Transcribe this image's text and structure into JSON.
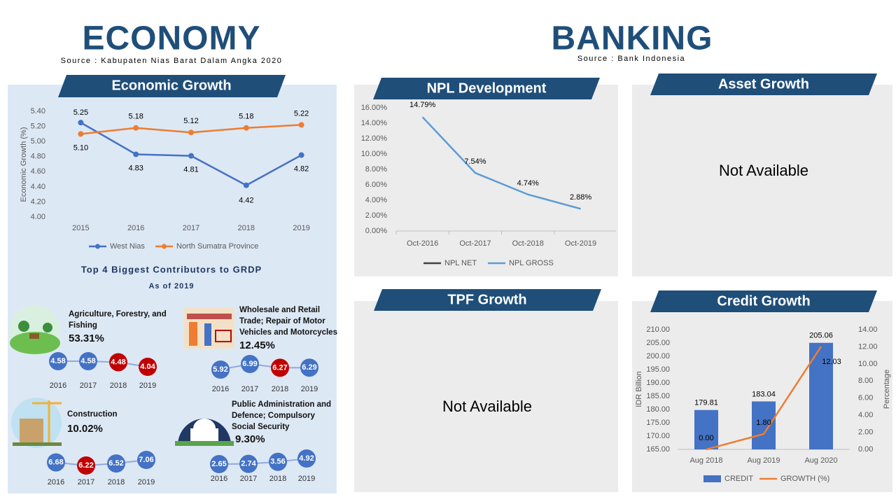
{
  "economy": {
    "title": "ECONOMY",
    "source": "Source : Kabupaten Nias Barat Dalam Angka 2020"
  },
  "banking": {
    "title": "BANKING",
    "source": "Source : Bank Indonesia"
  },
  "chart_data": [
    {
      "type": "line",
      "title": "Economic Growth",
      "ylabel": "Economic Growth (%)",
      "categories": [
        "2015",
        "2016",
        "2017",
        "2018",
        "2019"
      ],
      "series": [
        {
          "name": "West Nias",
          "color": "#4472c4",
          "values": [
            5.25,
            4.83,
            4.81,
            4.42,
            4.82
          ],
          "value_labels": [
            "5.25",
            "4.83",
            "4.81",
            "4.42",
            "4.82"
          ]
        },
        {
          "name": "North Sumatra Province",
          "color": "#ed7d31",
          "values": [
            5.1,
            5.18,
            5.12,
            5.18,
            5.22
          ],
          "value_labels": [
            "5.10",
            "5.18",
            "5.12",
            "5.18",
            "5.22"
          ]
        }
      ],
      "ylim": [
        4.0,
        5.4
      ],
      "yticks": [
        {
          "value": 4.0,
          "label": "4.00"
        },
        {
          "value": 4.2,
          "label": "4.20"
        },
        {
          "value": 4.4,
          "label": "4.40"
        },
        {
          "value": 4.6,
          "label": "4.60"
        },
        {
          "value": 4.8,
          "label": "4.80"
        },
        {
          "value": 5.0,
          "label": "5.00"
        },
        {
          "value": 5.2,
          "label": "5.20"
        },
        {
          "value": 5.4,
          "label": "5.40"
        }
      ],
      "grid": false,
      "legend": "bottom"
    },
    {
      "type": "line",
      "title": "NPL Development",
      "categories": [
        "Oct-2016",
        "Oct-2017",
        "Oct-2018",
        "Oct-2019"
      ],
      "series": [
        {
          "name": "NPL NET",
          "color": "#404040",
          "values": [
            null,
            null,
            null,
            null
          ]
        },
        {
          "name": "NPL GROSS",
          "color": "#5b9bd5",
          "values": [
            14.79,
            7.54,
            4.74,
            2.88
          ],
          "value_labels": [
            "14.79%",
            "7.54%",
            "4.74%",
            "2.88%"
          ]
        }
      ],
      "ylim": [
        0,
        16
      ],
      "yticks": [
        {
          "value": 0,
          "label": "0.00%"
        },
        {
          "value": 2,
          "label": "2.00%"
        },
        {
          "value": 4,
          "label": "4.00%"
        },
        {
          "value": 6,
          "label": "6.00%"
        },
        {
          "value": 8,
          "label": "8.00%"
        },
        {
          "value": 10,
          "label": "10.00%"
        },
        {
          "value": 12,
          "label": "12.00%"
        },
        {
          "value": 14,
          "label": "14.00%"
        },
        {
          "value": 16,
          "label": "16.00%"
        }
      ],
      "grid": false,
      "legend": "bottom"
    },
    {
      "type": "bar",
      "title": "Credit Growth",
      "ylabel": "IDR Billion",
      "y2label": "Percentage",
      "categories": [
        "Aug 2018",
        "Aug 2019",
        "Aug 2020"
      ],
      "series": [
        {
          "name": "CREDIT",
          "type": "bar",
          "color": "#4472c4",
          "values": [
            179.81,
            183.04,
            205.06
          ]
        },
        {
          "name": "GROWTH (%)",
          "type": "line",
          "axis": "y2",
          "color": "#ed7d31",
          "values": [
            0.0,
            1.8,
            12.03
          ],
          "value_labels": [
            "0.00",
            "1.80",
            "12.03"
          ]
        }
      ],
      "ylim": [
        165,
        210
      ],
      "yticks": [
        {
          "value": 165,
          "label": "165.00"
        },
        {
          "value": 170,
          "label": "170.00"
        },
        {
          "value": 175,
          "label": "175.00"
        },
        {
          "value": 180,
          "label": "180.00"
        },
        {
          "value": 185,
          "label": "185.00"
        },
        {
          "value": 190,
          "label": "190.00"
        },
        {
          "value": 195,
          "label": "195.00"
        },
        {
          "value": 200,
          "label": "200.00"
        },
        {
          "value": 205,
          "label": "205.00"
        },
        {
          "value": 210,
          "label": "210.00"
        }
      ],
      "y2lim": [
        0,
        14
      ],
      "y2ticks": [
        {
          "value": 0,
          "label": "0.00"
        },
        {
          "value": 2,
          "label": "2.00"
        },
        {
          "value": 4,
          "label": "4.00"
        },
        {
          "value": 6,
          "label": "6.00"
        },
        {
          "value": 8,
          "label": "8.00"
        },
        {
          "value": 10,
          "label": "10.00"
        },
        {
          "value": 12,
          "label": "12.00"
        },
        {
          "value": 14,
          "label": "14.00"
        }
      ],
      "grid": false,
      "legend": "bottom"
    }
  ],
  "contributors": {
    "title": "Top 4 Biggest Contributors to GRDP",
    "subtitle": "As of 2019",
    "items": [
      {
        "name": "Agriculture, Forestry, and Fishing",
        "share": "53.31%",
        "years": [
          "2016",
          "2017",
          "2018",
          "2019"
        ],
        "values": [
          4.58,
          4.58,
          4.48,
          4.04
        ],
        "colors": [
          "#4472c4",
          "#4472c4",
          "#c00000",
          "#c00000"
        ]
      },
      {
        "name": "Wholesale and Retail Trade; Repair of Motor Vehicles and Motorcycles",
        "share": "12.45%",
        "years": [
          "2016",
          "2017",
          "2018",
          "2019"
        ],
        "values": [
          5.92,
          6.99,
          6.27,
          6.29
        ],
        "colors": [
          "#4472c4",
          "#4472c4",
          "#c00000",
          "#4472c4"
        ]
      },
      {
        "name": "Construction",
        "share": "10.02%",
        "years": [
          "2016",
          "2017",
          "2018",
          "2019"
        ],
        "values": [
          6.68,
          6.22,
          6.52,
          7.06
        ],
        "colors": [
          "#4472c4",
          "#c00000",
          "#4472c4",
          "#4472c4"
        ]
      },
      {
        "name": "Public Administration and Defence; Compulsory Social Security",
        "share": "9.30%",
        "years": [
          "2016",
          "2017",
          "2018",
          "2019"
        ],
        "values": [
          2.65,
          2.74,
          3.56,
          4.92
        ],
        "colors": [
          "#4472c4",
          "#4472c4",
          "#4472c4",
          "#4472c4"
        ]
      }
    ]
  },
  "panels": [
    {
      "title": "Asset Growth",
      "text": "Not Available"
    },
    {
      "title": "TPF Growth",
      "text": "Not Available"
    }
  ]
}
